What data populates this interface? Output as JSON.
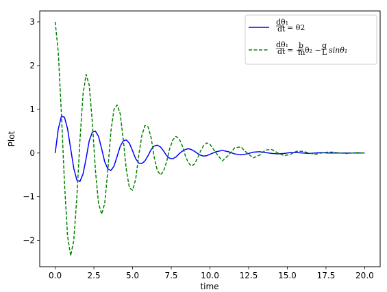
{
  "chart_data": {
    "type": "line",
    "title": "",
    "xlabel": "time",
    "ylabel": "Plot",
    "xlim": [
      -1.0,
      21.0
    ],
    "ylim": [
      -2.6,
      3.25
    ],
    "xticks": [
      0.0,
      2.5,
      5.0,
      7.5,
      10.0,
      12.5,
      15.0,
      17.5,
      20.0
    ],
    "xtick_labels": [
      "0.0",
      "2.5",
      "5.0",
      "7.5",
      "10.0",
      "12.5",
      "15.0",
      "17.5",
      "20.0"
    ],
    "yticks": [
      -2,
      -1,
      0,
      1,
      2,
      3
    ],
    "ytick_labels": [
      "−2",
      "−1",
      "0",
      "1",
      "2",
      "3"
    ],
    "grid": false,
    "legend_position": "top-right",
    "series": [
      {
        "name": "dθ1/dt = θ2",
        "color": "#0000ff",
        "style": "solid",
        "x": [
          0.0,
          0.2,
          0.4,
          0.6,
          0.8,
          1.0,
          1.2,
          1.4,
          1.6,
          1.8,
          2.0,
          2.2,
          2.4,
          2.6,
          2.8,
          3.0,
          3.2,
          3.4,
          3.6,
          3.8,
          4.0,
          4.2,
          4.4,
          4.6,
          4.8,
          5.0,
          5.2,
          5.4,
          5.6,
          5.8,
          6.0,
          6.2,
          6.4,
          6.6,
          6.8,
          7.0,
          7.2,
          7.4,
          7.6,
          7.8,
          8.0,
          8.2,
          8.4,
          8.6,
          8.8,
          9.0,
          9.2,
          9.4,
          9.6,
          9.8,
          10.0,
          10.4,
          10.8,
          11.2,
          11.6,
          12.0,
          12.4,
          12.8,
          13.2,
          13.6,
          14.0,
          14.4,
          14.8,
          15.2,
          15.6,
          16.0,
          16.4,
          16.8,
          17.2,
          17.6,
          18.0,
          18.4,
          18.8,
          19.2,
          19.6,
          20.0
        ],
        "y": [
          0.0,
          0.55,
          0.84,
          0.82,
          0.55,
          0.1,
          -0.35,
          -0.62,
          -0.65,
          -0.48,
          -0.12,
          0.28,
          0.48,
          0.5,
          0.38,
          0.1,
          -0.2,
          -0.36,
          -0.4,
          -0.3,
          -0.08,
          0.15,
          0.28,
          0.3,
          0.22,
          0.05,
          -0.13,
          -0.23,
          -0.24,
          -0.18,
          -0.06,
          0.08,
          0.16,
          0.18,
          0.14,
          0.05,
          -0.06,
          -0.12,
          -0.13,
          -0.09,
          -0.02,
          0.04,
          0.08,
          0.1,
          0.08,
          0.04,
          -0.01,
          -0.05,
          -0.07,
          -0.06,
          -0.03,
          0.03,
          0.06,
          0.03,
          -0.02,
          -0.04,
          -0.02,
          0.02,
          0.03,
          0.01,
          -0.01,
          -0.02,
          -0.01,
          0.01,
          0.01,
          0.0,
          -0.01,
          0.0,
          0.01,
          0.0,
          0.0,
          0.0,
          0.0,
          0.0,
          0.0,
          0.0
        ]
      },
      {
        "name": "dθ1/dt = −(b/m)θ2 − (g/L)sinθ1",
        "color": "#008000",
        "style": "dashed",
        "x": [
          0.0,
          0.2,
          0.4,
          0.6,
          0.8,
          1.0,
          1.2,
          1.4,
          1.6,
          1.8,
          2.0,
          2.2,
          2.4,
          2.6,
          2.8,
          3.0,
          3.2,
          3.4,
          3.6,
          3.8,
          4.0,
          4.2,
          4.4,
          4.6,
          4.8,
          5.0,
          5.2,
          5.4,
          5.6,
          5.8,
          6.0,
          6.2,
          6.4,
          6.6,
          6.8,
          7.0,
          7.2,
          7.4,
          7.6,
          7.8,
          8.0,
          8.2,
          8.4,
          8.6,
          8.8,
          9.0,
          9.2,
          9.4,
          9.6,
          9.8,
          10.0,
          10.4,
          10.8,
          11.2,
          11.6,
          12.0,
          12.4,
          12.8,
          13.2,
          13.6,
          14.0,
          14.4,
          14.8,
          15.2,
          15.6,
          16.0,
          16.4,
          16.8,
          17.2,
          17.6,
          18.0,
          18.4,
          18.8,
          19.2,
          19.6,
          20.0
        ],
        "y": [
          3.0,
          2.3,
          0.9,
          -0.7,
          -1.9,
          -2.35,
          -2.0,
          -1.0,
          0.3,
          1.35,
          1.8,
          1.55,
          0.7,
          -0.4,
          -1.15,
          -1.4,
          -1.15,
          -0.4,
          0.5,
          1.0,
          1.1,
          0.9,
          0.3,
          -0.4,
          -0.8,
          -0.85,
          -0.6,
          -0.05,
          0.4,
          0.63,
          0.6,
          0.35,
          -0.1,
          -0.4,
          -0.5,
          -0.42,
          -0.2,
          0.1,
          0.3,
          0.38,
          0.33,
          0.18,
          -0.05,
          -0.22,
          -0.3,
          -0.25,
          -0.12,
          0.05,
          0.18,
          0.23,
          0.2,
          0.0,
          -0.18,
          -0.05,
          0.12,
          0.14,
          0.0,
          -0.11,
          -0.05,
          0.07,
          0.08,
          0.0,
          -0.06,
          -0.03,
          0.04,
          0.04,
          0.0,
          -0.03,
          0.0,
          0.02,
          0.02,
          0.0,
          -0.01,
          0.0,
          0.01,
          0.0
        ]
      }
    ]
  }
}
